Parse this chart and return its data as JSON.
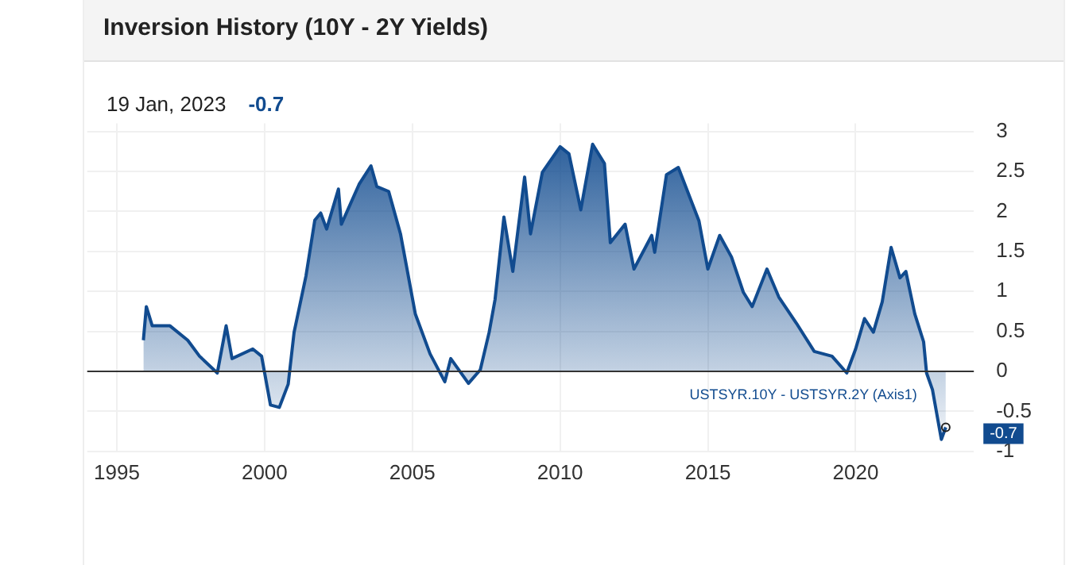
{
  "chart_data": {
    "type": "area",
    "title": "Inversion History (10Y - 2Y Yields)",
    "annotations": [
      "19 Jan, 2023",
      "-0.7",
      {
        "text": "-0.7",
        "x": 2023.05,
        "y": -0.7
      }
    ],
    "xlim": [
      1994,
      2024
    ],
    "xticks": [
      1995,
      2000,
      2005,
      2010,
      2015,
      2020
    ],
    "ylim": [
      -1,
      3.1
    ],
    "yticks": [
      -1,
      -0.5,
      0,
      0.5,
      1,
      1.5,
      2,
      2.5,
      3
    ],
    "grid": true,
    "legend": false,
    "ref_lines": [
      {
        "axis": "y",
        "value": 0,
        "color": "#333333"
      }
    ],
    "series": [
      {
        "name": "USTSYR.10Y - USTSYR.2Y (Axis1)",
        "color": "#114b8f",
        "x": [
          1995.9,
          1996.0,
          1996.2,
          1996.8,
          1997.4,
          1997.8,
          1998.4,
          1998.7,
          1998.9,
          1999.6,
          1999.9,
          2000.2,
          2000.5,
          2000.8,
          2001.0,
          2001.4,
          2001.7,
          2001.9,
          2002.1,
          2002.5,
          2002.6,
          2003.2,
          2003.6,
          2003.8,
          2004.2,
          2004.6,
          2005.1,
          2005.6,
          2006.1,
          2006.3,
          2006.9,
          2007.3,
          2007.6,
          2007.8,
          2008.1,
          2008.4,
          2008.8,
          2009.0,
          2009.4,
          2010.0,
          2010.3,
          2010.7,
          2011.1,
          2011.5,
          2011.7,
          2012.2,
          2012.5,
          2013.1,
          2013.2,
          2013.6,
          2014.0,
          2014.7,
          2015.0,
          2015.4,
          2015.8,
          2016.2,
          2016.5,
          2017.0,
          2017.4,
          2018.0,
          2018.6,
          2019.2,
          2019.7,
          2020.0,
          2020.3,
          2020.6,
          2020.9,
          2021.2,
          2021.5,
          2021.7,
          2022.0,
          2022.3,
          2022.4,
          2022.6,
          2022.9,
          2023.05
        ],
        "values": [
          0.39,
          0.81,
          0.57,
          0.57,
          0.39,
          0.19,
          -0.02,
          0.57,
          0.16,
          0.28,
          0.19,
          -0.42,
          -0.45,
          -0.16,
          0.49,
          1.19,
          1.89,
          1.98,
          1.78,
          2.28,
          1.84,
          2.34,
          2.57,
          2.31,
          2.25,
          1.72,
          0.72,
          0.22,
          -0.13,
          0.16,
          -0.15,
          0.02,
          0.49,
          0.9,
          1.93,
          1.25,
          2.43,
          1.72,
          2.49,
          2.81,
          2.72,
          2.02,
          2.84,
          2.6,
          1.61,
          1.84,
          1.28,
          1.7,
          1.49,
          2.46,
          2.55,
          1.88,
          1.28,
          1.7,
          1.43,
          0.99,
          0.81,
          1.28,
          0.93,
          0.6,
          0.25,
          0.19,
          -0.02,
          0.28,
          0.66,
          0.49,
          0.87,
          1.55,
          1.17,
          1.25,
          0.72,
          0.37,
          -0.02,
          -0.23,
          -0.85,
          -0.7
        ]
      }
    ]
  }
}
